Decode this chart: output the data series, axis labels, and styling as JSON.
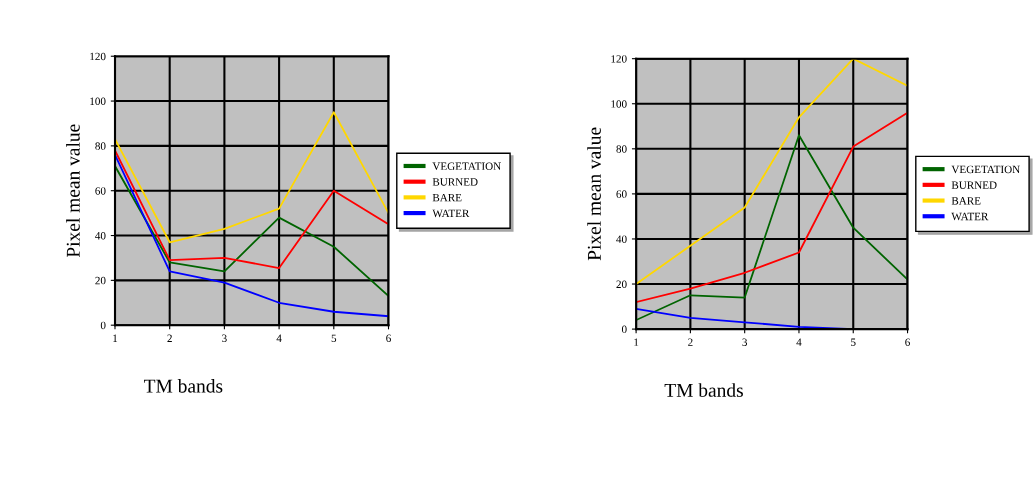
{
  "chart_data": [
    {
      "type": "line",
      "xlabel": "TM bands",
      "ylabel": "Pixel mean value",
      "x": [
        1,
        2,
        3,
        4,
        5,
        6
      ],
      "xlim": [
        1,
        6
      ],
      "xticks": [
        1,
        2,
        3,
        4,
        5,
        6
      ],
      "ylim": [
        0,
        120
      ],
      "yticks": [
        0,
        20,
        40,
        60,
        80,
        100,
        120
      ],
      "grid": true,
      "legend": "right",
      "marker": "none",
      "series": [
        {
          "name": "VEGETATION",
          "color": "#006400",
          "values": [
            71,
            28,
            24,
            48,
            35,
            13
          ]
        },
        {
          "name": "BURNED",
          "color": "#ff0000",
          "values": [
            78,
            29,
            30,
            25.5,
            60,
            45
          ]
        },
        {
          "name": "BARE",
          "color": "#ffd700",
          "values": [
            83,
            37,
            43,
            52,
            95,
            50
          ]
        },
        {
          "name": "WATER",
          "color": "#0000ff",
          "values": [
            76,
            24,
            19,
            10,
            6,
            4
          ]
        }
      ]
    },
    {
      "type": "line",
      "xlabel": "TM bands",
      "ylabel": "Pixel mean value",
      "x": [
        1,
        2,
        3,
        4,
        5,
        6
      ],
      "xlim": [
        1,
        6
      ],
      "xticks": [
        1,
        2,
        3,
        4,
        5,
        6
      ],
      "ylim": [
        0,
        120
      ],
      "yticks": [
        0,
        20,
        40,
        60,
        80,
        100,
        120
      ],
      "grid": true,
      "legend": "right",
      "marker": "none",
      "series": [
        {
          "name": "VEGETATION",
          "color": "#006400",
          "values": [
            4,
            15,
            14,
            86,
            45,
            22
          ]
        },
        {
          "name": "BURNED",
          "color": "#ff0000",
          "values": [
            12,
            18,
            25,
            34,
            81,
            96
          ]
        },
        {
          "name": "BARE",
          "color": "#ffd700",
          "values": [
            20,
            37,
            54,
            94,
            120,
            108
          ]
        },
        {
          "name": "WATER",
          "color": "#0000ff",
          "values": [
            9,
            5,
            3,
            1,
            0,
            0
          ]
        }
      ]
    }
  ]
}
